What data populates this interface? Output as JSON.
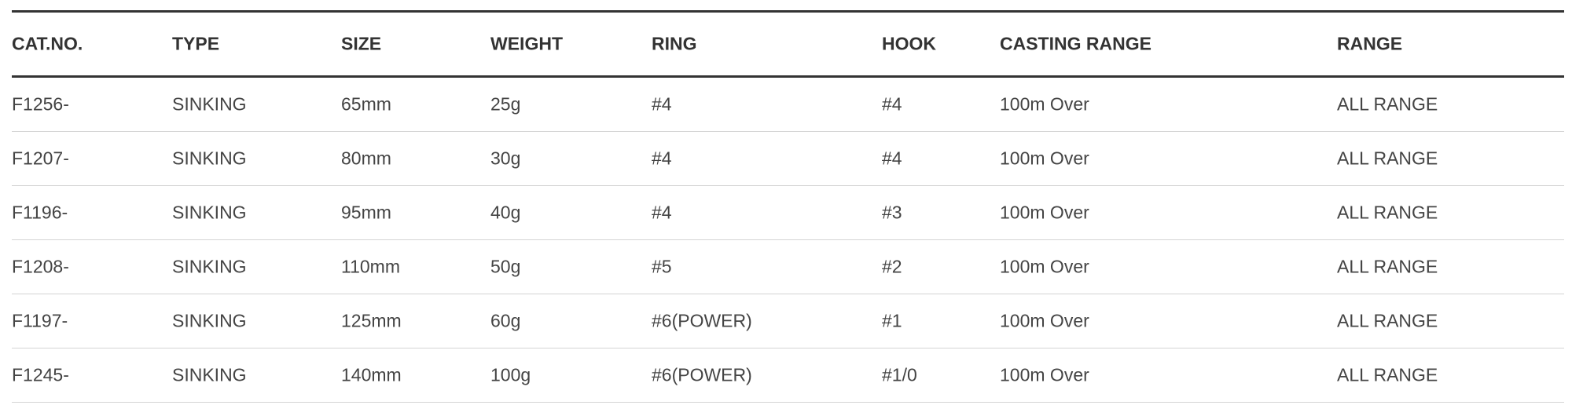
{
  "table": {
    "headers": [
      "CAT.NO.",
      "TYPE",
      "SIZE",
      "WEIGHT",
      "RING",
      "HOOK",
      "CASTING RANGE",
      "RANGE"
    ],
    "rows": [
      [
        "F1256-",
        "SINKING",
        "65mm",
        "25g",
        "#4",
        "#4",
        "100m Over",
        "ALL RANGE"
      ],
      [
        "F1207-",
        "SINKING",
        "80mm",
        "30g",
        "#4",
        "#4",
        "100m Over",
        "ALL RANGE"
      ],
      [
        "F1196-",
        "SINKING",
        "95mm",
        "40g",
        "#4",
        "#3",
        "100m Over",
        "ALL RANGE"
      ],
      [
        "F1208-",
        "SINKING",
        "110mm",
        "50g",
        "#5",
        "#2",
        "100m Over",
        "ALL RANGE"
      ],
      [
        "F1197-",
        "SINKING",
        "125mm",
        "60g",
        "#6(POWER)",
        "#1",
        "100m Over",
        "ALL RANGE"
      ],
      [
        "F1245-",
        "SINKING",
        "140mm",
        "100g",
        "#6(POWER)",
        "#1/0",
        "100m Over",
        "ALL RANGE"
      ]
    ]
  }
}
